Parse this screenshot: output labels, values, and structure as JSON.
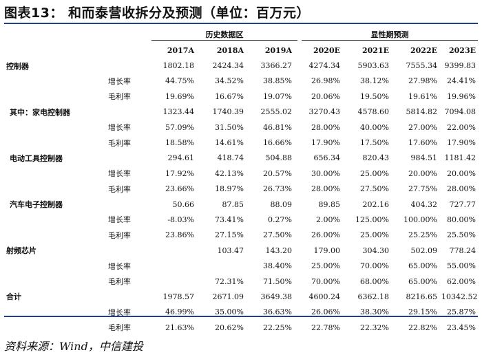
{
  "title": "图表13： 和而泰营收拆分及预测（单位：百万元）",
  "groups": {
    "historical": "历史数据区",
    "forecast": "显性期预测"
  },
  "years": [
    "2017A",
    "2018A",
    "2019A",
    "2020E",
    "2021E",
    "2022E",
    "2023E"
  ],
  "rows": [
    {
      "kind": "cat",
      "label": "控制器",
      "metric": "",
      "values": [
        "1802.18",
        "2424.34",
        "3366.27",
        "4274.34",
        "5903.63",
        "7555.34",
        "9399.83"
      ]
    },
    {
      "kind": "metric",
      "label": "",
      "metric": "增长率",
      "values": [
        "44.75%",
        "34.52%",
        "38.85%",
        "26.98%",
        "38.12%",
        "27.98%",
        "24.41%"
      ]
    },
    {
      "kind": "metric",
      "label": "",
      "metric": "毛利率",
      "values": [
        "19.69%",
        "16.67%",
        "19.07%",
        "20.06%",
        "19.50%",
        "19.61%",
        "19.96%"
      ]
    },
    {
      "kind": "sub",
      "label": "其中：家电控制器",
      "metric": "",
      "values": [
        "1323.44",
        "1740.39",
        "2555.02",
        "3270.43",
        "4578.60",
        "5814.82",
        "7094.08"
      ]
    },
    {
      "kind": "metric",
      "label": "",
      "metric": "增长率",
      "values": [
        "57.09%",
        "31.50%",
        "46.81%",
        "28.00%",
        "40.00%",
        "27.00%",
        "22.00%"
      ]
    },
    {
      "kind": "metric",
      "label": "",
      "metric": "毛利率",
      "values": [
        "18.58%",
        "14.61%",
        "16.66%",
        "17.90%",
        "17.50%",
        "17.60%",
        "17.90%"
      ]
    },
    {
      "kind": "sub",
      "label": "电动工具控制器",
      "metric": "",
      "values": [
        "294.61",
        "418.74",
        "504.88",
        "656.34",
        "820.43",
        "984.51",
        "1181.42"
      ]
    },
    {
      "kind": "metric",
      "label": "",
      "metric": "增长率",
      "values": [
        "17.92%",
        "42.13%",
        "20.57%",
        "30.00%",
        "25.00%",
        "20.00%",
        "20.00%"
      ]
    },
    {
      "kind": "metric",
      "label": "",
      "metric": "毛利率",
      "values": [
        "23.66%",
        "18.97%",
        "26.73%",
        "28.00%",
        "27.50%",
        "27.75%",
        "28.00%"
      ]
    },
    {
      "kind": "sub",
      "label": "汽车电子控制器",
      "metric": "",
      "values": [
        "50.66",
        "87.85",
        "88.09",
        "89.85",
        "202.16",
        "404.32",
        "727.77"
      ]
    },
    {
      "kind": "metric",
      "label": "",
      "metric": "增长率",
      "values": [
        "-8.03%",
        "73.41%",
        "0.27%",
        "2.00%",
        "125.00%",
        "100.00%",
        "80.00%"
      ]
    },
    {
      "kind": "metric",
      "label": "",
      "metric": "毛利率",
      "values": [
        "23.86%",
        "27.15%",
        "27.50%",
        "26.00%",
        "25.00%",
        "25.25%",
        "25.50%"
      ]
    },
    {
      "kind": "cat",
      "label": "射频芯片",
      "metric": "",
      "values": [
        "",
        "103.47",
        "143.20",
        "179.00",
        "304.30",
        "502.09",
        "778.24"
      ]
    },
    {
      "kind": "metric",
      "label": "",
      "metric": "增长率",
      "values": [
        "",
        "",
        "38.40%",
        "25.00%",
        "70.00%",
        "65.00%",
        "55.00%"
      ]
    },
    {
      "kind": "metric",
      "label": "",
      "metric": "毛利率",
      "values": [
        "",
        "72.31%",
        "71.50%",
        "70.00%",
        "68.00%",
        "65.00%",
        "62.00%"
      ]
    },
    {
      "kind": "cat",
      "label": "合计",
      "metric": "",
      "values": [
        "1978.57",
        "2671.09",
        "3649.38",
        "4600.24",
        "6362.18",
        "8216.65",
        "10342.52"
      ]
    },
    {
      "kind": "metric",
      "label": "",
      "metric": "增长率",
      "values": [
        "46.99%",
        "35.00%",
        "36.63%",
        "26.06%",
        "38.30%",
        "29.15%",
        "25.87%"
      ]
    },
    {
      "kind": "metric",
      "label": "",
      "metric": "毛利率",
      "values": [
        "21.63%",
        "20.62%",
        "22.25%",
        "22.78%",
        "22.32%",
        "22.82%",
        "23.45%"
      ]
    }
  ],
  "footer": "资料来源：Wind，中信建投",
  "colors": {
    "rule": "#1f3f8c",
    "text": "#111111"
  }
}
